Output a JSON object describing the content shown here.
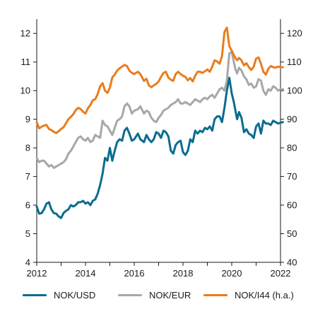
{
  "chart_data": {
    "type": "line",
    "title": "",
    "xlabel": "",
    "ylabel_left": "",
    "ylabel_right": "",
    "x_ticks": [
      "2012",
      "2014",
      "2016",
      "2018",
      "2020",
      "2022"
    ],
    "x_range": [
      2012.0,
      2022.0
    ],
    "y_left_ticks": [
      "4",
      "5",
      "6",
      "7",
      "8",
      "9",
      "10",
      "11",
      "12"
    ],
    "y_left_range": [
      4,
      12.5
    ],
    "y_right_ticks": [
      "40",
      "50",
      "60",
      "70",
      "80",
      "90",
      "100",
      "110",
      "120"
    ],
    "y_right_range": [
      40,
      125
    ],
    "grid": false,
    "legend_position": "bottom",
    "series": [
      {
        "name": "NOK/USD",
        "color": "#0a6c8e",
        "axis": "left",
        "x": [
          2012.0,
          2012.1,
          2012.2,
          2012.3,
          2012.4,
          2012.5,
          2012.6,
          2012.7,
          2012.8,
          2012.9,
          2013.0,
          2013.1,
          2013.2,
          2013.3,
          2013.4,
          2013.5,
          2013.6,
          2013.7,
          2013.8,
          2013.9,
          2014.0,
          2014.1,
          2014.2,
          2014.3,
          2014.4,
          2014.5,
          2014.6,
          2014.7,
          2014.8,
          2014.9,
          2015.0,
          2015.1,
          2015.2,
          2015.3,
          2015.4,
          2015.5,
          2015.6,
          2015.7,
          2015.8,
          2015.9,
          2016.0,
          2016.15,
          2016.25,
          2016.4,
          2016.5,
          2016.6,
          2016.7,
          2016.8,
          2016.9,
          2017.0,
          2017.1,
          2017.2,
          2017.3,
          2017.4,
          2017.5,
          2017.6,
          2017.7,
          2017.8,
          2017.9,
          2018.0,
          2018.1,
          2018.2,
          2018.3,
          2018.4,
          2018.5,
          2018.6,
          2018.7,
          2018.8,
          2018.9,
          2019.0,
          2019.1,
          2019.2,
          2019.3,
          2019.4,
          2019.5,
          2019.6,
          2019.7,
          2019.8,
          2019.9,
          2020.0,
          2020.1,
          2020.15,
          2020.22,
          2020.3,
          2020.4,
          2020.5,
          2020.6,
          2020.7,
          2020.8,
          2020.9,
          2021.0,
          2021.1,
          2021.2,
          2021.3,
          2021.4,
          2021.5,
          2021.6,
          2021.7,
          2021.8,
          2021.9,
          2022.0,
          2022.1
        ],
        "values": [
          5.95,
          5.7,
          5.72,
          5.85,
          6.05,
          6.1,
          5.85,
          5.72,
          5.7,
          5.6,
          5.55,
          5.72,
          5.8,
          5.85,
          6.0,
          5.95,
          6.0,
          6.1,
          6.1,
          6.15,
          6.05,
          6.1,
          6.0,
          6.15,
          6.2,
          6.4,
          6.7,
          7.1,
          7.65,
          7.55,
          8.0,
          7.55,
          7.9,
          8.2,
          8.3,
          8.25,
          8.6,
          8.7,
          8.5,
          8.25,
          8.3,
          8.5,
          8.3,
          8.2,
          8.45,
          8.3,
          8.2,
          8.3,
          8.55,
          8.5,
          8.35,
          8.6,
          8.55,
          8.4,
          7.9,
          7.8,
          8.1,
          8.2,
          8.25,
          7.85,
          7.75,
          7.9,
          8.3,
          8.2,
          8.6,
          8.5,
          8.6,
          8.55,
          8.7,
          8.65,
          8.75,
          8.6,
          9.0,
          9.1,
          9.1,
          8.9,
          9.4,
          10.0,
          10.45,
          9.9,
          9.55,
          9.3,
          9.0,
          9.25,
          9.05,
          8.55,
          8.65,
          8.5,
          8.45,
          8.35,
          8.75,
          8.85,
          8.5,
          8.95,
          8.85,
          8.85,
          8.8,
          8.95,
          8.9,
          8.85,
          8.88,
          8.9
        ]
      },
      {
        "name": "NOK/EUR",
        "color": "#a7a7a7",
        "axis": "left",
        "x": [
          2012.0,
          2012.1,
          2012.2,
          2012.3,
          2012.4,
          2012.5,
          2012.6,
          2012.7,
          2012.8,
          2012.9,
          2013.0,
          2013.1,
          2013.2,
          2013.3,
          2013.4,
          2013.5,
          2013.6,
          2013.7,
          2013.8,
          2013.9,
          2014.0,
          2014.1,
          2014.2,
          2014.3,
          2014.4,
          2014.5,
          2014.6,
          2014.7,
          2014.8,
          2014.9,
          2015.0,
          2015.1,
          2015.2,
          2015.3,
          2015.4,
          2015.5,
          2015.6,
          2015.7,
          2015.8,
          2015.9,
          2016.0,
          2016.15,
          2016.25,
          2016.4,
          2016.5,
          2016.6,
          2016.7,
          2016.8,
          2016.9,
          2017.0,
          2017.1,
          2017.2,
          2017.3,
          2017.4,
          2017.5,
          2017.6,
          2017.7,
          2017.8,
          2017.9,
          2018.0,
          2018.1,
          2018.2,
          2018.3,
          2018.4,
          2018.5,
          2018.6,
          2018.7,
          2018.8,
          2018.9,
          2019.0,
          2019.1,
          2019.2,
          2019.3,
          2019.4,
          2019.5,
          2019.6,
          2019.7,
          2019.8,
          2019.9,
          2020.0,
          2020.1,
          2020.15,
          2020.22,
          2020.3,
          2020.4,
          2020.5,
          2020.6,
          2020.7,
          2020.8,
          2020.9,
          2021.0,
          2021.1,
          2021.2,
          2021.3,
          2021.4,
          2021.5,
          2021.6,
          2021.7,
          2021.8,
          2021.9,
          2022.0,
          2022.1
        ],
        "values": [
          7.65,
          7.5,
          7.55,
          7.55,
          7.45,
          7.35,
          7.4,
          7.3,
          7.35,
          7.4,
          7.45,
          7.5,
          7.6,
          7.8,
          7.9,
          8.05,
          8.2,
          8.35,
          8.4,
          8.3,
          8.25,
          8.35,
          8.2,
          8.25,
          8.45,
          8.4,
          8.35,
          8.95,
          8.8,
          8.75,
          8.6,
          8.45,
          8.7,
          8.95,
          9.0,
          9.1,
          9.45,
          9.55,
          9.45,
          9.2,
          9.3,
          9.35,
          9.45,
          9.2,
          9.3,
          9.25,
          9.05,
          8.95,
          8.9,
          9.05,
          9.15,
          9.3,
          9.35,
          9.4,
          9.5,
          9.55,
          9.6,
          9.7,
          9.55,
          9.55,
          9.6,
          9.55,
          9.5,
          9.6,
          9.7,
          9.65,
          9.6,
          9.7,
          9.75,
          9.7,
          9.8,
          9.85,
          9.75,
          9.9,
          10.05,
          10.1,
          10.0,
          10.35,
          11.3,
          11.35,
          10.95,
          10.75,
          10.6,
          10.8,
          10.7,
          10.5,
          10.4,
          10.2,
          10.25,
          10.1,
          10.15,
          10.4,
          10.35,
          10.0,
          9.85,
          10.05,
          10.0,
          10.15,
          10.1,
          10.0,
          10.05,
          10.05
        ]
      },
      {
        "name": "NOK/I44 (h.a.)",
        "color": "#e87d1e",
        "axis": "right",
        "x": [
          2012.0,
          2012.1,
          2012.2,
          2012.3,
          2012.4,
          2012.5,
          2012.6,
          2012.7,
          2012.8,
          2012.9,
          2013.0,
          2013.1,
          2013.2,
          2013.3,
          2013.4,
          2013.5,
          2013.6,
          2013.7,
          2013.8,
          2013.9,
          2014.0,
          2014.1,
          2014.2,
          2014.3,
          2014.4,
          2014.5,
          2014.6,
          2014.7,
          2014.8,
          2014.9,
          2015.0,
          2015.1,
          2015.2,
          2015.3,
          2015.4,
          2015.5,
          2015.6,
          2015.7,
          2015.8,
          2015.9,
          2016.0,
          2016.15,
          2016.25,
          2016.4,
          2016.5,
          2016.6,
          2016.7,
          2016.8,
          2016.9,
          2017.0,
          2017.1,
          2017.2,
          2017.3,
          2017.4,
          2017.5,
          2017.6,
          2017.7,
          2017.8,
          2017.9,
          2018.0,
          2018.1,
          2018.2,
          2018.3,
          2018.4,
          2018.5,
          2018.6,
          2018.7,
          2018.8,
          2018.9,
          2019.0,
          2019.1,
          2019.2,
          2019.3,
          2019.4,
          2019.5,
          2019.6,
          2019.7,
          2019.8,
          2019.9,
          2020.0,
          2020.1,
          2020.15,
          2020.22,
          2020.3,
          2020.4,
          2020.5,
          2020.6,
          2020.7,
          2020.8,
          2020.9,
          2021.0,
          2021.1,
          2021.2,
          2021.3,
          2021.4,
          2021.5,
          2021.6,
          2021.7,
          2021.8,
          2021.9,
          2022.0,
          2022.1
        ],
        "values": [
          89.0,
          86.8,
          87.4,
          87.8,
          88.0,
          86.6,
          86.2,
          85.6,
          85.2,
          85.8,
          86.6,
          87.2,
          88.6,
          90.0,
          90.8,
          91.8,
          93.2,
          94.0,
          93.6,
          92.6,
          92.0,
          93.8,
          95.0,
          96.6,
          97.0,
          98.8,
          101.5,
          102.6,
          100.0,
          99.2,
          101.0,
          104.6,
          105.6,
          107.0,
          107.8,
          108.4,
          109.0,
          108.6,
          107.0,
          106.2,
          105.8,
          106.6,
          105.8,
          103.4,
          104.2,
          101.8,
          101.2,
          101.8,
          102.4,
          103.2,
          104.8,
          106.2,
          106.6,
          104.6,
          103.8,
          103.4,
          105.8,
          106.6,
          105.8,
          105.2,
          104.8,
          103.6,
          104.4,
          103.2,
          105.2,
          106.6,
          106.6,
          106.2,
          106.8,
          107.4,
          106.6,
          108.4,
          110.6,
          110.2,
          109.4,
          112.0,
          120.5,
          122.0,
          115.5,
          114.0,
          112.2,
          111.4,
          110.6,
          111.4,
          110.6,
          108.8,
          109.6,
          108.2,
          107.2,
          108.4,
          111.2,
          111.6,
          109.4,
          106.6,
          105.6,
          107.6,
          108.6,
          108.2,
          108.0,
          108.4,
          108.2,
          108.2
        ]
      }
    ]
  }
}
